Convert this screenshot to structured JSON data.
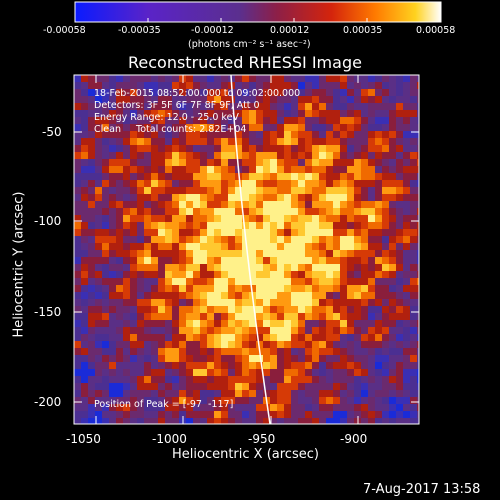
{
  "colorbar": {
    "tick_labels": [
      "-0.00058",
      "-0.00035",
      "-0.00012",
      "0.00012",
      "0.00035",
      "0.00058"
    ],
    "unit_label": "(photons cm⁻² s⁻¹ asec⁻²)",
    "colors": [
      "#0a1bff",
      "#5a23c8",
      "#5b2f8e",
      "#8c1f48",
      "#d4240c",
      "#ff7a00",
      "#ffd21f",
      "#ffffff"
    ]
  },
  "title": "Reconstructed RHESSI Image",
  "annotations": {
    "time_range": "18-Feb-2015 08:52:00.000 to 09:02:00.000",
    "detectors": "Detectors: 3F 5F 6F 7F 8F 9F, Att 0",
    "energy_range": "Energy Range: 12.0 - 25.0 keV",
    "algorithm": "Clean     Total counts: 2.82E+04",
    "peak_position": "Position of Peak = [-97  -117]"
  },
  "axes": {
    "xlabel": "Heliocentric X (arcsec)",
    "ylabel": "Heliocentric Y (arcsec)",
    "x_ticks": [
      "-1050",
      "-1000",
      "-950",
      "-900"
    ],
    "y_ticks": [
      "-50",
      "-100",
      "-150",
      "-200"
    ],
    "xlim": [
      -1067,
      -868
    ],
    "ylim": [
      -210,
      -25
    ]
  },
  "footer": {
    "date": "7-Aug-2017 13:58"
  }
}
